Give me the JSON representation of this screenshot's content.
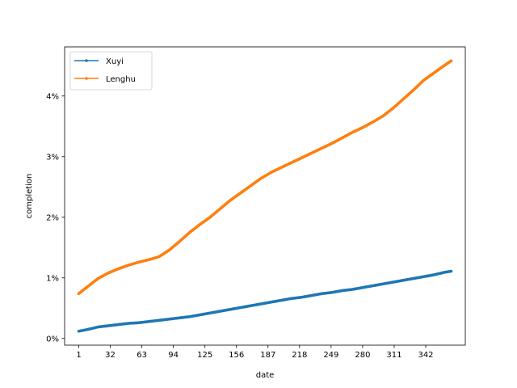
{
  "chart_data": {
    "type": "line",
    "xlabel": "date",
    "ylabel": "completion",
    "x_ticks": [
      1,
      32,
      63,
      94,
      125,
      156,
      187,
      218,
      249,
      280,
      311,
      342
    ],
    "y_ticks": [
      0,
      1,
      2,
      3,
      4
    ],
    "y_tick_labels": [
      "0%",
      "1%",
      "2%",
      "3%",
      "4%"
    ],
    "xlim": [
      -12.9,
      380.9
    ],
    "ylim": [
      -0.11,
      4.81
    ],
    "legend_position": "upper-left",
    "grid": false,
    "x": [
      1,
      10,
      20,
      30,
      40,
      50,
      60,
      70,
      80,
      90,
      100,
      110,
      120,
      130,
      140,
      150,
      160,
      170,
      180,
      190,
      200,
      210,
      220,
      230,
      240,
      250,
      260,
      270,
      280,
      290,
      300,
      310,
      320,
      330,
      340,
      350,
      360,
      367
    ],
    "series": [
      {
        "name": "Xuyi",
        "color": "#1f77b4",
        "values": [
          0.12,
          0.15,
          0.19,
          0.21,
          0.23,
          0.25,
          0.26,
          0.28,
          0.3,
          0.32,
          0.34,
          0.36,
          0.39,
          0.42,
          0.45,
          0.48,
          0.51,
          0.54,
          0.57,
          0.6,
          0.63,
          0.66,
          0.68,
          0.71,
          0.74,
          0.76,
          0.79,
          0.81,
          0.84,
          0.87,
          0.9,
          0.93,
          0.96,
          0.99,
          1.02,
          1.05,
          1.09,
          1.11
        ]
      },
      {
        "name": "Lenghu",
        "color": "#ff7f0e",
        "values": [
          0.74,
          0.86,
          0.99,
          1.08,
          1.15,
          1.21,
          1.26,
          1.3,
          1.35,
          1.46,
          1.6,
          1.75,
          1.88,
          2.0,
          2.14,
          2.28,
          2.4,
          2.52,
          2.64,
          2.74,
          2.82,
          2.9,
          2.98,
          3.06,
          3.14,
          3.22,
          3.31,
          3.4,
          3.48,
          3.57,
          3.67,
          3.8,
          3.95,
          4.1,
          4.26,
          4.38,
          4.5,
          4.58
        ]
      }
    ]
  }
}
